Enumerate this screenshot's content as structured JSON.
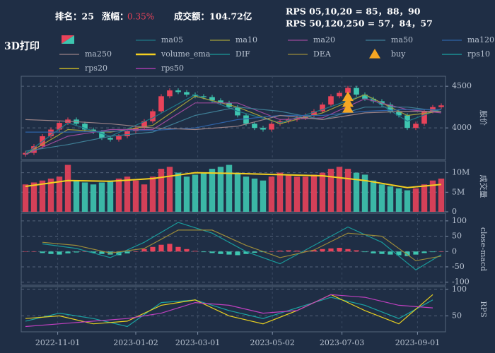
{
  "header": {
    "rank": "排名：25",
    "change_label": "涨幅：",
    "change": "0.35%",
    "turnover": "成交额：104.72亿",
    "rps_short": "RPS 05,10,20 = 85，88，90",
    "rps_long": "RPS 50,120,250 = 57，84，57",
    "sector": "3D打印"
  },
  "chart_data": [
    {
      "type": "candlestick",
      "ylabel": "股价",
      "ylim": [
        3620,
        4620
      ],
      "yticks": [
        4000,
        4500
      ],
      "grid": true,
      "up_color": "#e8435a",
      "down_color": "#3ec6b0",
      "open": [
        3680,
        3700,
        3780,
        3900,
        3980,
        4060,
        4100,
        4050,
        3980,
        3950,
        3880,
        3860,
        3900,
        3960,
        4000,
        4080,
        4200,
        4380,
        4450,
        4430,
        4400,
        4380,
        4370,
        4330,
        4300,
        4250,
        4150,
        4050,
        4000,
        3980,
        4050,
        4080,
        4100,
        4120,
        4150,
        4200,
        4280,
        4380,
        4420,
        4480,
        4400,
        4350,
        4320,
        4280,
        4200,
        4150,
        4000,
        4050,
        4200,
        4250
      ],
      "high": [
        3725,
        3805,
        3925,
        4005,
        4085,
        4125,
        4125,
        4075,
        4005,
        3975,
        3905,
        3925,
        3985,
        4025,
        4105,
        4225,
        4405,
        4475,
        4475,
        4455,
        4425,
        4405,
        4395,
        4355,
        4325,
        4275,
        4175,
        4075,
        4025,
        4075,
        4105,
        4125,
        4145,
        4175,
        4225,
        4305,
        4405,
        4445,
        4505,
        4505,
        4425,
        4375,
        4345,
        4305,
        4225,
        4175,
        4075,
        4225,
        4275,
        4295
      ],
      "low": [
        3655,
        3675,
        3755,
        3875,
        3955,
        4035,
        4025,
        3955,
        3925,
        3855,
        3835,
        3835,
        3875,
        3935,
        3975,
        4055,
        4175,
        4355,
        4405,
        4375,
        4355,
        4345,
        4305,
        4275,
        4225,
        4125,
        4025,
        3975,
        3955,
        3955,
        4025,
        4055,
        4075,
        4095,
        4125,
        4175,
        4255,
        4355,
        4395,
        4375,
        4325,
        4295,
        4255,
        4175,
        4125,
        3975,
        3975,
        4025,
        4175,
        4225
      ],
      "close": [
        3700,
        3780,
        3900,
        3980,
        4060,
        4100,
        4050,
        3980,
        3950,
        3880,
        3860,
        3900,
        3960,
        4000,
        4080,
        4200,
        4380,
        4450,
        4430,
        4400,
        4380,
        4370,
        4330,
        4300,
        4250,
        4150,
        4050,
        4000,
        3980,
        4050,
        4080,
        4100,
        4120,
        4150,
        4200,
        4280,
        4380,
        4420,
        4480,
        4400,
        4350,
        4320,
        4280,
        4200,
        4150,
        4000,
        4050,
        4200,
        4250,
        4270
      ],
      "series": [
        {
          "name": "ma05",
          "color": "#1f7a88",
          "x": [
            0,
            5,
            10,
            15,
            20,
            25,
            30,
            35,
            40,
            45,
            49
          ],
          "values": [
            3690,
            4060,
            3900,
            4120,
            4400,
            4200,
            4060,
            4220,
            4400,
            4080,
            4230
          ]
        },
        {
          "name": "ma10",
          "color": "#a3a03a",
          "x": [
            0,
            5,
            10,
            15,
            20,
            25,
            30,
            35,
            40,
            45,
            49
          ],
          "values": [
            3680,
            3980,
            3950,
            4030,
            4380,
            4250,
            4050,
            4180,
            4400,
            4150,
            4200
          ]
        },
        {
          "name": "ma20",
          "color": "#9a4a9a",
          "x": [
            0,
            5,
            10,
            15,
            20,
            25,
            30,
            35,
            40,
            45,
            49
          ],
          "values": [
            3680,
            3900,
            3980,
            3980,
            4300,
            4300,
            4100,
            4120,
            4350,
            4220,
            4180
          ]
        },
        {
          "name": "ma50",
          "color": "#3f7f96",
          "x": [
            0,
            5,
            10,
            15,
            20,
            25,
            30,
            35,
            40,
            45,
            49
          ],
          "values": [
            3720,
            3800,
            3900,
            3950,
            4150,
            4250,
            4200,
            4100,
            4250,
            4250,
            4200
          ]
        },
        {
          "name": "ma120",
          "color": "#2f63a8",
          "x": [
            0,
            5,
            10,
            15,
            20,
            25,
            30,
            35,
            40,
            45,
            49
          ],
          "values": [
            3950,
            3950,
            3960,
            3970,
            4000,
            4100,
            4150,
            4150,
            4200,
            4220,
            4220
          ]
        },
        {
          "name": "ma250",
          "color": "#9a8286",
          "x": [
            0,
            5,
            10,
            15,
            20,
            25,
            30,
            35,
            40,
            45,
            49
          ],
          "values": [
            4100,
            4080,
            4050,
            4000,
            3980,
            4020,
            4150,
            4100,
            4180,
            4200,
            4200
          ]
        },
        {
          "name": "buy",
          "type": "scatter",
          "color": "#f5a623",
          "x": [
            38,
            38,
            38
          ],
          "values": [
            4230,
            4300,
            4370
          ]
        }
      ]
    },
    {
      "type": "bar",
      "ylabel": "成交量",
      "ylim": [
        0,
        13000000
      ],
      "grid": true,
      "yticks": [
        0,
        {
          "value": 5000000,
          "label": "5M"
        },
        {
          "value": 10000000,
          "label": "10M"
        }
      ],
      "values": [
        7000000,
        7500000,
        8000000,
        8500000,
        9000000,
        12000000,
        8000000,
        7500000,
        7000000,
        7500000,
        8000000,
        8500000,
        9000000,
        8000000,
        7000000,
        9000000,
        11000000,
        11500000,
        10000000,
        9000000,
        9500000,
        10000000,
        11000000,
        11500000,
        12000000,
        10000000,
        9000000,
        8500000,
        8000000,
        9000000,
        10000000,
        9500000,
        9000000,
        9000000,
        9500000,
        10000000,
        11000000,
        11500000,
        11000000,
        10000000,
        9500000,
        8000000,
        7000000,
        6500000,
        6000000,
        5500000,
        6000000,
        7000000,
        8000000,
        8500000
      ],
      "series": [
        {
          "name": "volume_ema",
          "color": "#f5d020",
          "x": [
            0,
            5,
            10,
            15,
            20,
            25,
            30,
            35,
            40,
            45,
            49
          ],
          "values": [
            6500000,
            8000000,
            7800000,
            8500000,
            10000000,
            9800000,
            9500000,
            9200000,
            8000000,
            6200000,
            7000000
          ]
        }
      ]
    },
    {
      "type": "macd",
      "ylabel": "close-macd",
      "ylim": [
        -110,
        125
      ],
      "yticks": [
        -100,
        -50,
        0,
        50,
        100
      ],
      "grid": true,
      "up_color": "#e8435a",
      "down_color": "#3ec6b0",
      "values": [
        0,
        0,
        -5,
        -8,
        -10,
        -6,
        -3,
        0,
        -4,
        -8,
        -10,
        -12,
        -6,
        0,
        8,
        15,
        22,
        25,
        15,
        8,
        2,
        -2,
        -5,
        -8,
        -10,
        -12,
        -8,
        -4,
        -2,
        0,
        3,
        4,
        3,
        2,
        5,
        8,
        10,
        12,
        8,
        4,
        -2,
        -6,
        -8,
        -10,
        -12,
        -15,
        -10,
        -5,
        -2,
        0
      ],
      "series": [
        {
          "name": "DIF",
          "color": "#1a9a9a",
          "x": [
            2,
            6,
            10,
            14,
            18,
            22,
            26,
            30,
            34,
            38,
            42,
            46,
            49
          ],
          "values": [
            25,
            10,
            -20,
            30,
            95,
            60,
            0,
            -40,
            20,
            80,
            30,
            -60,
            -10
          ]
        },
        {
          "name": "DEA",
          "color": "#9a8a3a",
          "x": [
            2,
            6,
            10,
            14,
            18,
            22,
            26,
            30,
            34,
            38,
            42,
            46,
            49
          ],
          "values": [
            30,
            20,
            -5,
            10,
            70,
            70,
            20,
            -20,
            5,
            60,
            50,
            -30,
            -15
          ]
        }
      ]
    },
    {
      "type": "line",
      "ylabel": "RPS",
      "ylim": [
        20,
        105
      ],
      "yticks": [
        50,
        100
      ],
      "grid": true,
      "xlim": [
        -0.5,
        49.5
      ],
      "xticks": [
        {
          "value": 3.8,
          "label": "2022-11-01"
        },
        {
          "value": 13,
          "label": "2023-01-02"
        },
        {
          "value": 20.3,
          "label": "2023-03-01"
        },
        {
          "value": 29.1,
          "label": "2023-05-02"
        },
        {
          "value": 37.3,
          "label": "2023-07-03"
        },
        {
          "value": 46.2,
          "label": "2023-09-01"
        }
      ],
      "series": [
        {
          "name": "rps10",
          "color": "#1aa3a3",
          "x": [
            0,
            4,
            8,
            12,
            16,
            20,
            24,
            28,
            32,
            36,
            40,
            44,
            48
          ],
          "values": [
            40,
            55,
            45,
            30,
            75,
            80,
            60,
            45,
            65,
            85,
            70,
            45,
            80
          ]
        },
        {
          "name": "rps20",
          "color": "#e8d020",
          "x": [
            0,
            4,
            8,
            12,
            16,
            20,
            24,
            28,
            32,
            36,
            40,
            44,
            48
          ],
          "values": [
            45,
            50,
            35,
            40,
            70,
            80,
            50,
            35,
            60,
            90,
            60,
            35,
            90
          ]
        },
        {
          "name": "rps50",
          "color": "#c040c0",
          "x": [
            0,
            4,
            8,
            12,
            16,
            20,
            24,
            28,
            32,
            36,
            40,
            44,
            48
          ],
          "values": [
            30,
            35,
            40,
            45,
            55,
            75,
            70,
            55,
            60,
            90,
            85,
            70,
            65
          ]
        }
      ]
    }
  ]
}
